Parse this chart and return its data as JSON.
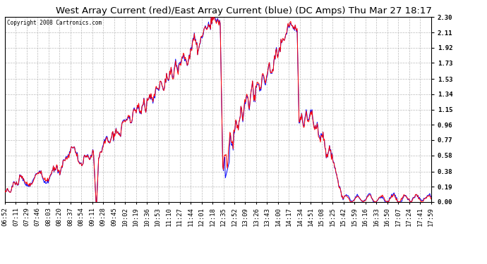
{
  "title": "West Array Current (red)/East Array Current (blue) (DC Amps) Thu Mar 27 18:17",
  "copyright": "Copyright 2008 Cartronics.com",
  "ylabel_values": [
    0.0,
    0.19,
    0.38,
    0.58,
    0.77,
    0.96,
    1.15,
    1.34,
    1.53,
    1.73,
    1.92,
    2.11,
    2.3
  ],
  "ylim": [
    0.0,
    2.3
  ],
  "background_color": "#ffffff",
  "plot_bg_color": "#ffffff",
  "grid_color": "#aaaaaa",
  "red_color": "#ff0000",
  "blue_color": "#0000ff",
  "title_fontsize": 9.5,
  "tick_fontsize": 6.5,
  "x_labels": [
    "06:52",
    "07:11",
    "07:29",
    "07:46",
    "08:03",
    "08:20",
    "08:37",
    "08:54",
    "09:11",
    "09:28",
    "09:45",
    "10:02",
    "10:19",
    "10:36",
    "10:53",
    "11:10",
    "11:27",
    "11:44",
    "12:01",
    "12:18",
    "12:35",
    "12:52",
    "13:09",
    "13:26",
    "13:43",
    "14:00",
    "14:17",
    "14:34",
    "14:51",
    "15:08",
    "15:25",
    "15:42",
    "15:59",
    "16:16",
    "16:33",
    "16:50",
    "17:07",
    "17:24",
    "17:41",
    "17:59"
  ]
}
